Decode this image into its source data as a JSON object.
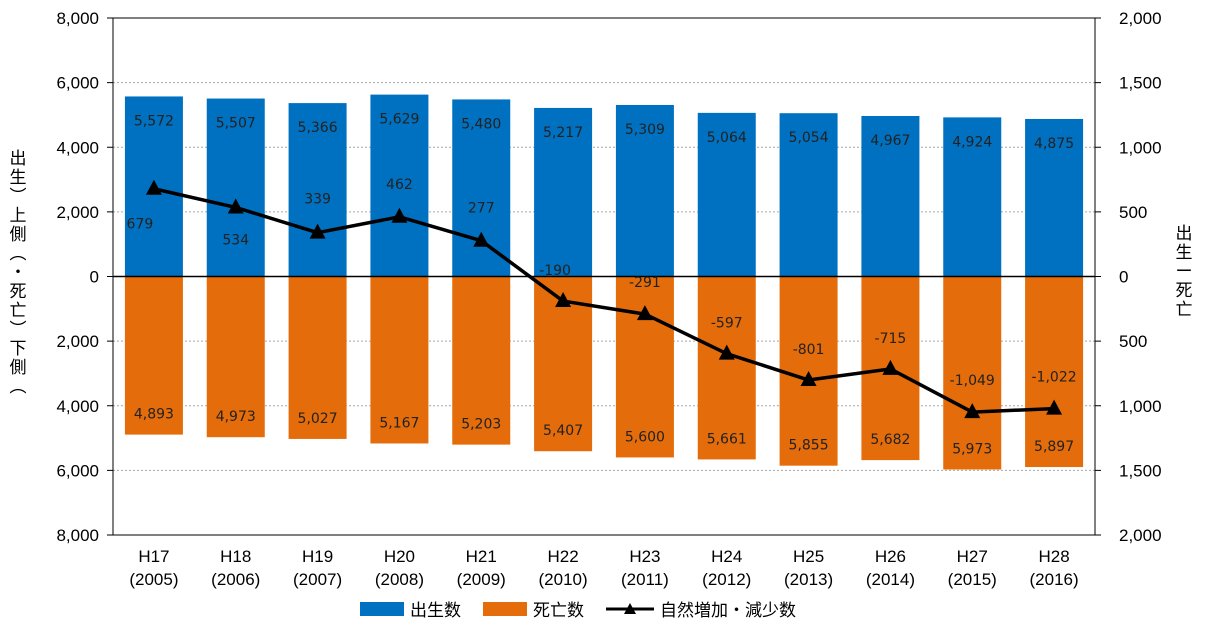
{
  "chart_data": {
    "type": "bar",
    "categories": [
      [
        "H17",
        "(2005)"
      ],
      [
        "H18",
        "(2006)"
      ],
      [
        "H19",
        "(2007)"
      ],
      [
        "H20",
        "(2008)"
      ],
      [
        "H21",
        "(2009)"
      ],
      [
        "H22",
        "(2010)"
      ],
      [
        "H23",
        "(2011)"
      ],
      [
        "H24",
        "(2012)"
      ],
      [
        "H25",
        "(2013)"
      ],
      [
        "H26",
        "(2014)"
      ],
      [
        "H27",
        "(2015)"
      ],
      [
        "H28",
        "(2016)"
      ]
    ],
    "series": [
      {
        "name": "出生数",
        "color": "#0070c0",
        "axis": "left",
        "direction": "up",
        "values": [
          5572,
          5507,
          5366,
          5629,
          5480,
          5217,
          5309,
          5064,
          5054,
          4967,
          4924,
          4875
        ],
        "labels": [
          "5,572",
          "5,507",
          "5,366",
          "5,629",
          "5,480",
          "5,217",
          "5,309",
          "5,064",
          "5,054",
          "4,967",
          "4,924",
          "4,875"
        ]
      },
      {
        "name": "死亡数",
        "color": "#e46c0a",
        "axis": "left",
        "direction": "down",
        "values": [
          4893,
          4973,
          5027,
          5167,
          5203,
          5407,
          5600,
          5661,
          5855,
          5682,
          5973,
          5897
        ],
        "labels": [
          "4,893",
          "4,973",
          "5,027",
          "5,167",
          "5,203",
          "5,407",
          "5,600",
          "5,661",
          "5,855",
          "5,682",
          "5,973",
          "5,897"
        ]
      },
      {
        "name": "自然増加・減少数",
        "color": "#000000",
        "axis": "right",
        "type": "line",
        "marker": "triangle",
        "values": [
          679,
          534,
          339,
          462,
          277,
          -190,
          -291,
          -597,
          -801,
          -715,
          -1049,
          -1022
        ],
        "labels": [
          "679",
          "534",
          "339",
          "462",
          "277",
          "-190",
          "-291",
          "-597",
          "-801",
          "-715",
          "-1,049",
          "-1,022"
        ]
      }
    ],
    "left_axis": {
      "range": [
        -8000,
        8000
      ],
      "ticks": [
        8000,
        6000,
        4000,
        2000,
        0,
        -2000,
        -4000,
        -6000,
        -8000
      ],
      "tick_labels": [
        "8,000",
        "6,000",
        "4,000",
        "2,000",
        "0",
        "2,000",
        "4,000",
        "6,000",
        "8,000"
      ],
      "title": [
        "出",
        "生",
        "︶",
        "上",
        "側",
        "︵",
        "・",
        "死",
        "亡",
        "︶",
        "下",
        "側",
        "︵"
      ]
    },
    "right_axis": {
      "range": [
        -2000,
        2000
      ],
      "ticks": [
        2000,
        1500,
        1000,
        500,
        0,
        -500,
        -1000,
        -1500,
        -2000
      ],
      "tick_labels": [
        "2,000",
        "1,500",
        "1,000",
        "500",
        "0",
        "500",
        "1,000",
        "1,500",
        "2,000"
      ],
      "title": [
        "出",
        "生",
        "ー",
        "死",
        "亡"
      ]
    },
    "grid": true,
    "legend_position": "bottom",
    "legend": [
      "出生数",
      "死亡数",
      "自然増加・減少数"
    ]
  }
}
